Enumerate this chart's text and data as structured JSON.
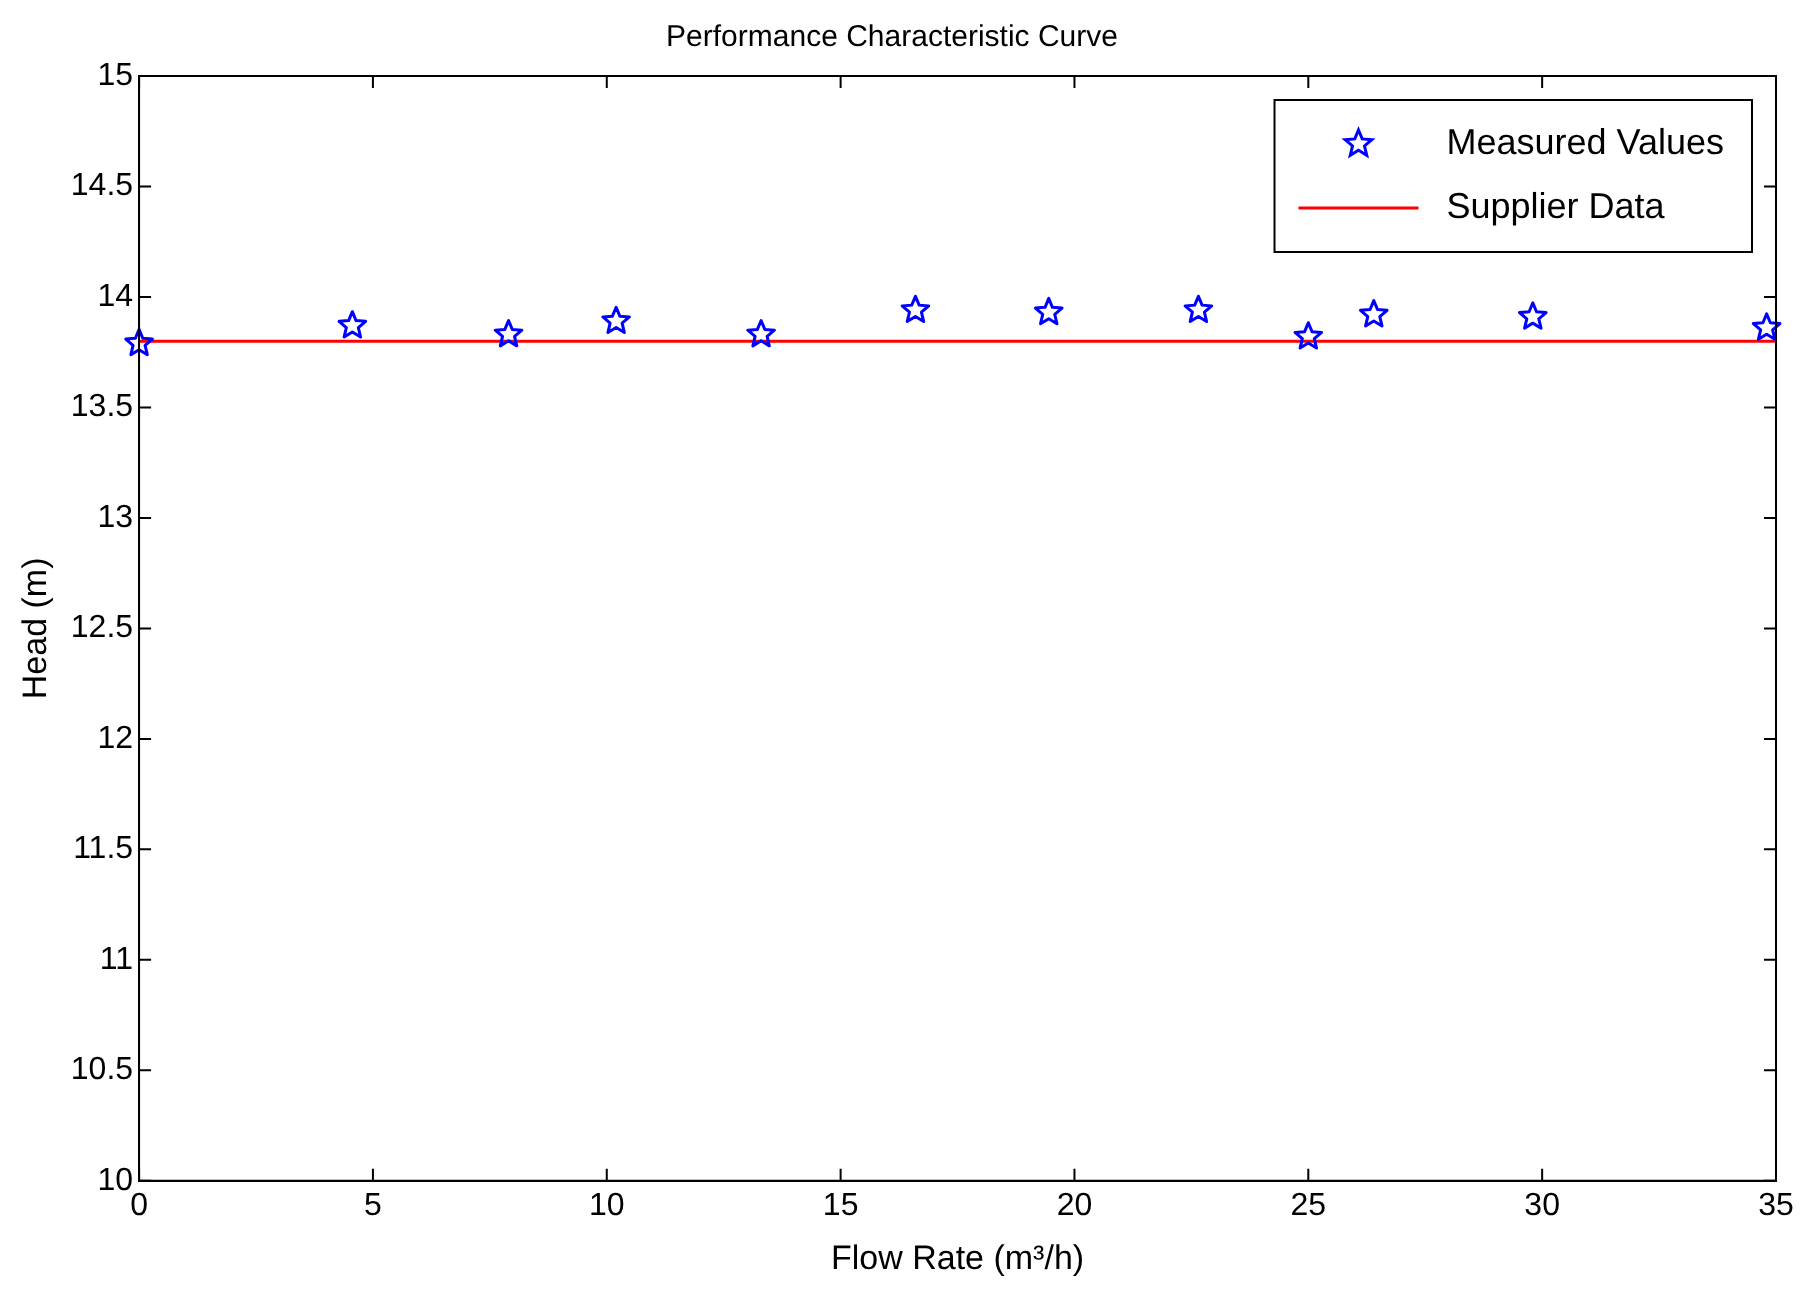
{
  "chart_data": {
    "type": "scatter",
    "title": "Performance Characteristic Curve",
    "xlabel": "Flow Rate (m³/h)",
    "ylabel": "Head (m)",
    "xlim": [
      0,
      35
    ],
    "xticks": [
      0,
      5,
      10,
      15,
      20,
      25,
      30,
      35
    ],
    "ylim": [
      10,
      15
    ],
    "yticks": [
      10,
      10.5,
      11,
      11.5,
      12,
      12.5,
      13,
      13.5,
      14,
      14.5,
      15
    ],
    "grid": false,
    "legend": "top right",
    "series": [
      {
        "name": "Measured Values",
        "marker": "star",
        "color": "#0000ff",
        "x": [
          0,
          4.56,
          7.9,
          10.2,
          13.3,
          16.6,
          19.45,
          22.65,
          25.0,
          26.4,
          29.8,
          34.8
        ],
        "values": [
          13.79,
          13.87,
          13.83,
          13.89,
          13.83,
          13.94,
          13.93,
          13.94,
          13.82,
          13.92,
          13.91,
          13.86
        ]
      },
      {
        "name": "Supplier Data",
        "type": "line",
        "marker": "none",
        "line_style": "solid",
        "color": "#ff0000",
        "x": [
          0,
          35
        ],
        "values": [
          13.8,
          13.8
        ]
      }
    ]
  }
}
